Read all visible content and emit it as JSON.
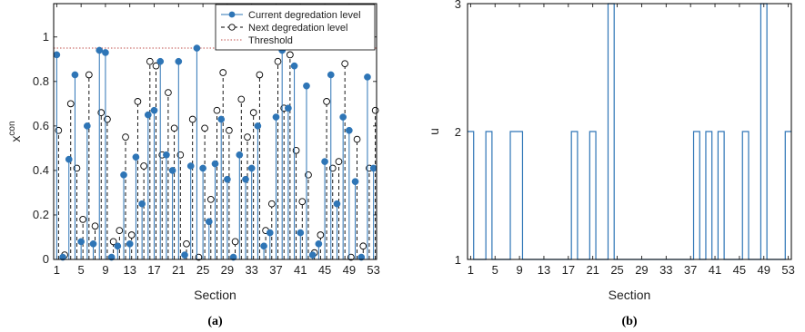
{
  "chart_data": [
    {
      "type": "stem",
      "panel_label": "(a)",
      "xlabel": "Section",
      "ylabel": "x",
      "ylabel_superscript": "con",
      "xlim": [
        0.5,
        53.5
      ],
      "ylim": [
        0,
        1.15
      ],
      "xticks": [
        1,
        5,
        9,
        13,
        17,
        21,
        25,
        29,
        33,
        37,
        41,
        45,
        49,
        53
      ],
      "yticks": [
        0,
        0.2,
        0.4,
        0.6,
        0.8,
        1
      ],
      "ytick_labels": [
        "0",
        "0.2",
        "0.4",
        "0.6",
        "0.8",
        "1"
      ],
      "threshold": 0.95,
      "legend_position": "top-right",
      "colors": {
        "current": "#2e75b6",
        "next": "#000000",
        "threshold": "#c0504d"
      },
      "series": [
        {
          "name": "Current degredation level",
          "style": "filled-stem",
          "x": [
            1,
            2,
            3,
            4,
            5,
            6,
            7,
            8,
            9,
            10,
            11,
            12,
            13,
            14,
            15,
            16,
            17,
            18,
            19,
            20,
            21,
            22,
            23,
            24,
            25,
            26,
            27,
            28,
            29,
            30,
            31,
            32,
            33,
            34,
            35,
            36,
            37,
            38,
            39,
            40,
            41,
            42,
            43,
            44,
            45,
            46,
            47,
            48,
            49,
            50,
            51,
            52,
            53
          ],
          "values": [
            0.92,
            0.01,
            0.45,
            0.83,
            0.08,
            0.6,
            0.07,
            0.94,
            0.93,
            0.01,
            0.06,
            0.38,
            0.07,
            0.46,
            0.25,
            0.65,
            0.67,
            0.89,
            0.47,
            0.4,
            0.89,
            0.02,
            0.42,
            0.95,
            0.41,
            0.17,
            0.43,
            0.63,
            0.36,
            0.01,
            0.47,
            0.36,
            0.41,
            0.6,
            0.06,
            0.12,
            0.64,
            0.94,
            0.68,
            0.87,
            0.12,
            0.78,
            0.02,
            0.07,
            0.44,
            0.83,
            0.25,
            0.64,
            0.58,
            0.35,
            0.01,
            0.82,
            0.41
          ]
        },
        {
          "name": "Next degredation level",
          "style": "open-dashed-stem",
          "x": [
            1,
            2,
            3,
            4,
            5,
            6,
            7,
            8,
            9,
            10,
            11,
            12,
            13,
            14,
            15,
            16,
            17,
            18,
            19,
            20,
            21,
            22,
            23,
            24,
            25,
            26,
            27,
            28,
            29,
            30,
            31,
            32,
            33,
            34,
            35,
            36,
            37,
            38,
            39,
            40,
            41,
            42,
            43,
            44,
            45,
            46,
            47,
            48,
            49,
            50,
            51,
            52,
            53
          ],
          "values": [
            0.58,
            0.02,
            0.7,
            0.41,
            0.18,
            0.83,
            0.15,
            0.66,
            0.63,
            0.08,
            0.13,
            0.55,
            0.11,
            0.71,
            0.42,
            0.89,
            0.87,
            0.47,
            0.75,
            0.59,
            0.47,
            0.07,
            0.63,
            0.01,
            0.59,
            0.27,
            0.67,
            0.84,
            0.58,
            0.08,
            0.72,
            0.55,
            0.66,
            0.83,
            0.13,
            0.25,
            0.89,
            0.68,
            0.92,
            0.49,
            0.26,
            0.38,
            0.03,
            0.11,
            0.71,
            0.41,
            0.44,
            0.88,
            0.01,
            0.54,
            0.06,
            0.41,
            0.67
          ]
        }
      ]
    },
    {
      "type": "step",
      "panel_label": "(b)",
      "xlabel": "Section",
      "ylabel": "u",
      "xlim": [
        0.5,
        53.5
      ],
      "ylim": [
        1,
        3
      ],
      "xticks": [
        1,
        5,
        9,
        13,
        17,
        21,
        25,
        29,
        33,
        37,
        41,
        45,
        49,
        53
      ],
      "yticks": [
        1,
        2,
        3
      ],
      "line_color": "#2e75b6",
      "x": [
        1,
        2,
        3,
        4,
        5,
        6,
        7,
        8,
        9,
        10,
        11,
        12,
        13,
        14,
        15,
        16,
        17,
        18,
        19,
        20,
        21,
        22,
        23,
        24,
        25,
        26,
        27,
        28,
        29,
        30,
        31,
        32,
        33,
        34,
        35,
        36,
        37,
        38,
        39,
        40,
        41,
        42,
        43,
        44,
        45,
        46,
        47,
        48,
        49,
        50,
        51,
        52,
        53
      ],
      "values": [
        2,
        1,
        1,
        2,
        1,
        1,
        1,
        2,
        2,
        1,
        1,
        1,
        1,
        1,
        1,
        1,
        1,
        2,
        1,
        1,
        2,
        1,
        1,
        3,
        1,
        1,
        1,
        1,
        1,
        1,
        1,
        1,
        1,
        1,
        1,
        1,
        1,
        2,
        1,
        2,
        1,
        2,
        1,
        1,
        1,
        2,
        1,
        1,
        3,
        1,
        1,
        1,
        2
      ]
    }
  ]
}
